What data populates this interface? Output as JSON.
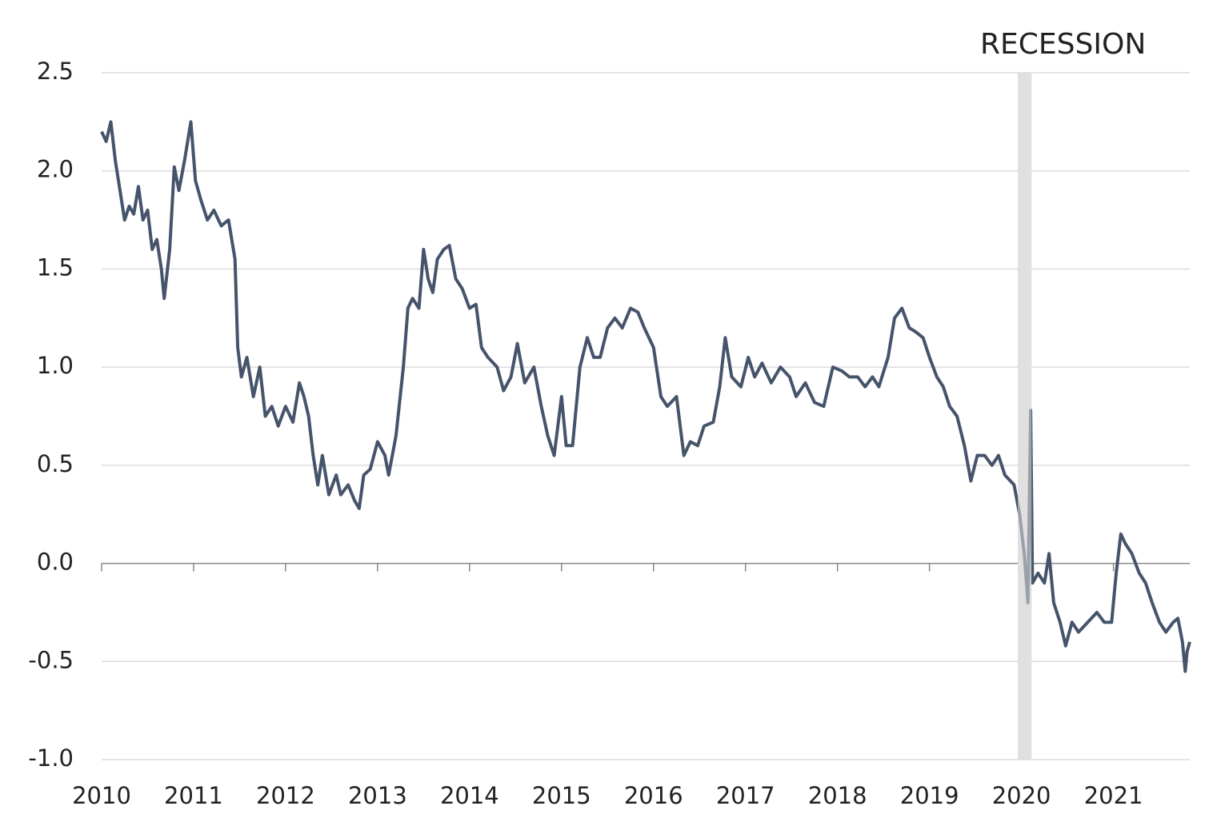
{
  "chart_data": {
    "type": "line",
    "annotation": {
      "label": "RECESSION",
      "start": 2019.96,
      "end": 2020.11,
      "color": "#e0e0e0"
    },
    "x": [
      2010.0,
      2010.05,
      2010.1,
      2010.15,
      2010.2,
      2010.25,
      2010.3,
      2010.35,
      2010.4,
      2010.45,
      2010.5,
      2010.55,
      2010.6,
      2010.65,
      2010.68,
      2010.74,
      2010.79,
      2010.84,
      2010.9,
      2010.97,
      2011.02,
      2011.08,
      2011.15,
      2011.22,
      2011.3,
      2011.38,
      2011.45,
      2011.48,
      2011.52,
      2011.58,
      2011.65,
      2011.72,
      2011.78,
      2011.85,
      2011.92,
      2012.0,
      2012.08,
      2012.15,
      2012.2,
      2012.25,
      2012.3,
      2012.35,
      2012.4,
      2012.47,
      2012.55,
      2012.6,
      2012.68,
      2012.75,
      2012.8,
      2012.85,
      2012.92,
      2013.0,
      2013.08,
      2013.12,
      2013.2,
      2013.28,
      2013.33,
      2013.38,
      2013.45,
      2013.5,
      2013.55,
      2013.6,
      2013.65,
      2013.72,
      2013.78,
      2013.85,
      2013.92,
      2014.0,
      2014.07,
      2014.13,
      2014.2,
      2014.3,
      2014.37,
      2014.45,
      2014.52,
      2014.6,
      2014.7,
      2014.78,
      2014.85,
      2014.92,
      2015.0,
      2015.05,
      2015.12,
      2015.2,
      2015.28,
      2015.35,
      2015.42,
      2015.5,
      2015.58,
      2015.66,
      2015.75,
      2015.83,
      2015.9,
      2016.0,
      2016.08,
      2016.15,
      2016.25,
      2016.33,
      2016.4,
      2016.48,
      2016.55,
      2016.65,
      2016.72,
      2016.78,
      2016.85,
      2016.95,
      2017.03,
      2017.1,
      2017.18,
      2017.28,
      2017.38,
      2017.48,
      2017.55,
      2017.65,
      2017.75,
      2017.85,
      2017.95,
      2018.05,
      2018.13,
      2018.22,
      2018.3,
      2018.38,
      2018.45,
      2018.55,
      2018.62,
      2018.7,
      2018.78,
      2018.85,
      2018.93,
      2019.0,
      2019.08,
      2019.15,
      2019.22,
      2019.3,
      2019.38,
      2019.45,
      2019.52,
      2019.6,
      2019.68,
      2019.75,
      2019.82,
      2019.92,
      2019.98,
      2020.03,
      2020.07,
      2020.1,
      2020.12,
      2020.18,
      2020.25,
      2020.3,
      2020.35,
      2020.42,
      2020.48,
      2020.55,
      2020.62,
      2020.72,
      2020.82,
      2020.9,
      2020.98,
      2021.03,
      2021.08,
      2021.13,
      2021.2,
      2021.28,
      2021.35,
      2021.42,
      2021.5,
      2021.57,
      2021.65,
      2021.7,
      2021.75,
      2021.78,
      2021.8,
      2021.83
    ],
    "series": [
      {
        "color": "#46546b",
        "values": [
          2.2,
          2.15,
          2.25,
          2.05,
          1.9,
          1.75,
          1.82,
          1.78,
          1.92,
          1.75,
          1.8,
          1.6,
          1.65,
          1.5,
          1.35,
          1.6,
          2.02,
          1.9,
          2.05,
          2.25,
          1.95,
          1.85,
          1.75,
          1.8,
          1.72,
          1.75,
          1.55,
          1.1,
          0.95,
          1.05,
          0.85,
          1.0,
          0.75,
          0.8,
          0.7,
          0.8,
          0.72,
          0.92,
          0.85,
          0.75,
          0.55,
          0.4,
          0.55,
          0.35,
          0.45,
          0.35,
          0.4,
          0.32,
          0.28,
          0.45,
          0.48,
          0.62,
          0.55,
          0.45,
          0.65,
          1.0,
          1.3,
          1.35,
          1.3,
          1.6,
          1.45,
          1.38,
          1.55,
          1.6,
          1.62,
          1.45,
          1.4,
          1.3,
          1.32,
          1.1,
          1.05,
          1.0,
          0.88,
          0.95,
          1.12,
          0.92,
          1.0,
          0.8,
          0.65,
          0.55,
          0.85,
          0.6,
          0.6,
          1.0,
          1.15,
          1.05,
          1.05,
          1.2,
          1.25,
          1.2,
          1.3,
          1.28,
          1.2,
          1.1,
          0.85,
          0.8,
          0.85,
          0.55,
          0.62,
          0.6,
          0.7,
          0.72,
          0.9,
          1.15,
          0.95,
          0.9,
          1.05,
          0.95,
          1.02,
          0.92,
          1.0,
          0.95,
          0.85,
          0.92,
          0.82,
          0.8,
          1.0,
          0.98,
          0.95,
          0.95,
          0.9,
          0.95,
          0.9,
          1.05,
          1.25,
          1.3,
          1.2,
          1.18,
          1.15,
          1.05,
          0.95,
          0.9,
          0.8,
          0.75,
          0.6,
          0.42,
          0.55,
          0.55,
          0.5,
          0.55,
          0.45,
          0.4,
          0.25,
          0.05,
          -0.2,
          0.78,
          -0.1,
          -0.05,
          -0.1,
          0.05,
          -0.2,
          -0.3,
          -0.42,
          -0.3,
          -0.35,
          -0.3,
          -0.25,
          -0.3,
          -0.3,
          -0.05,
          0.15,
          0.1,
          0.05,
          -0.05,
          -0.1,
          -0.2,
          -0.3,
          -0.35,
          -0.3,
          -0.28,
          -0.4,
          -0.55,
          -0.45,
          -0.4
        ]
      }
    ],
    "xlim": [
      2010,
      2021.83
    ],
    "xticks": [
      2010,
      2011,
      2012,
      2013,
      2014,
      2015,
      2016,
      2017,
      2018,
      2019,
      2020,
      2021
    ],
    "ylim": [
      -1,
      2.5
    ],
    "yticks": [
      {
        "value": -1,
        "label": "-1.0"
      },
      -0.5,
      {
        "value": 0,
        "label": "0.0"
      },
      0.5,
      {
        "value": 1,
        "label": "1.0"
      },
      1.5,
      {
        "value": 2,
        "label": "2.0"
      },
      2.5
    ],
    "grid": true
  }
}
